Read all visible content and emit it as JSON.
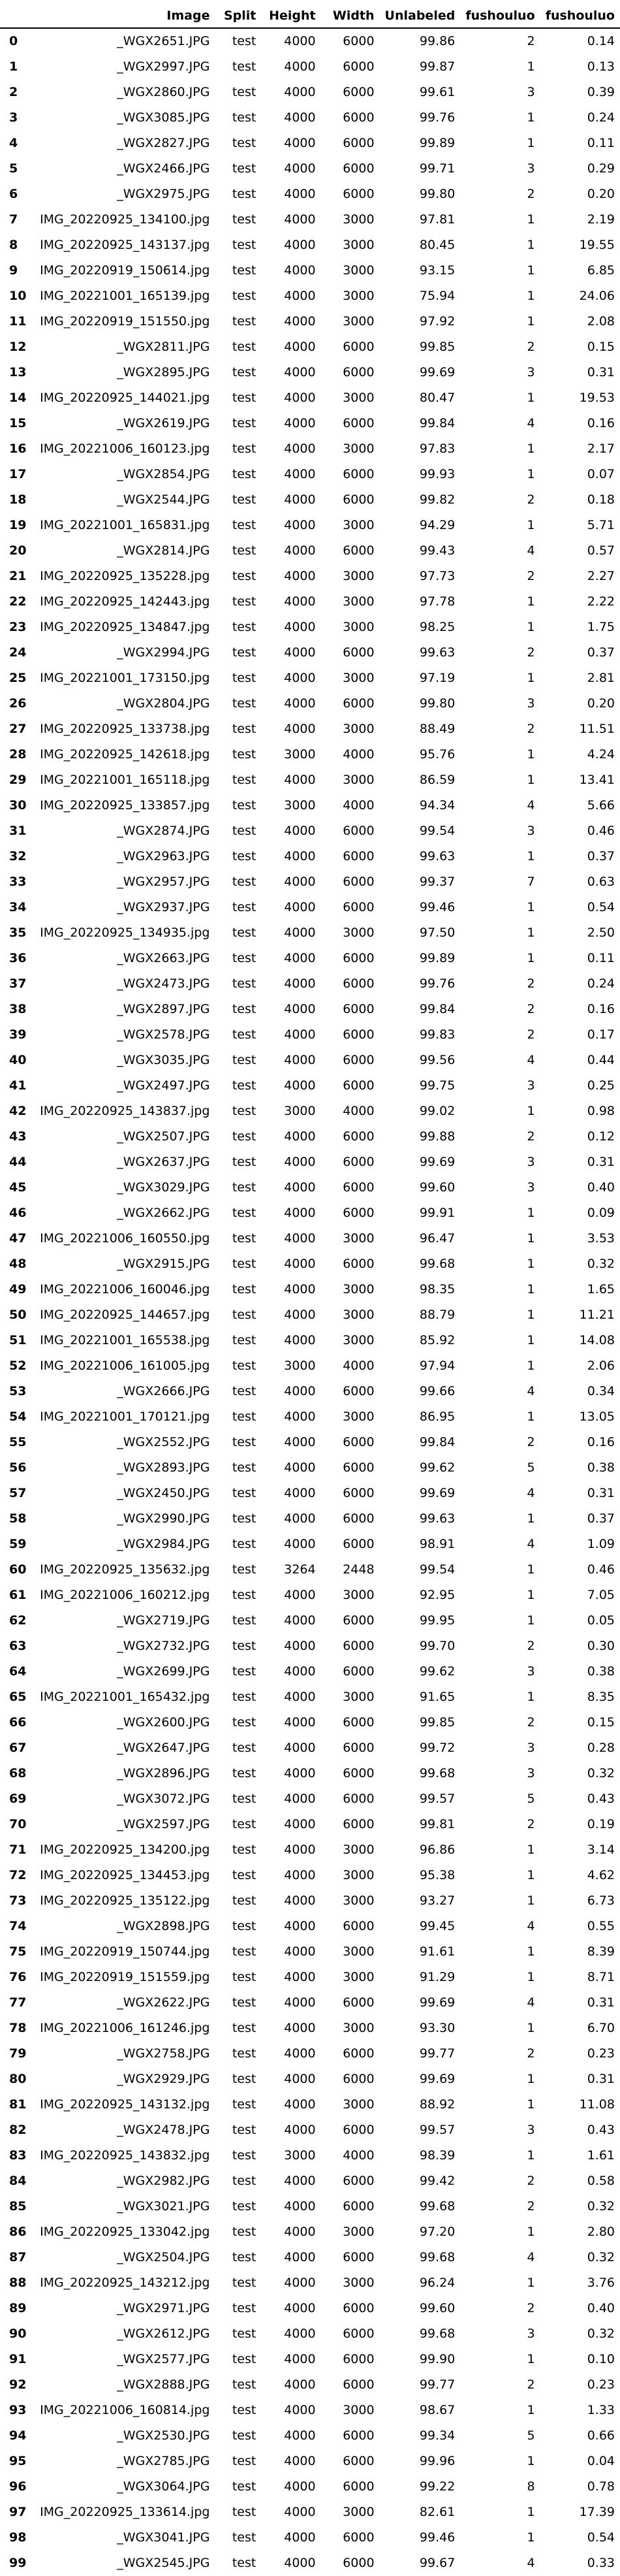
{
  "columns": [
    "",
    "Image",
    "Split",
    "Height",
    "Width",
    "Unlabeled",
    "fushouluo",
    "fushouluo"
  ],
  "rows": [
    [
      "0",
      "_WGX2651.JPG",
      "test",
      "4000",
      "6000",
      "99.86",
      "2",
      "0.14"
    ],
    [
      "1",
      "_WGX2997.JPG",
      "test",
      "4000",
      "6000",
      "99.87",
      "1",
      "0.13"
    ],
    [
      "2",
      "_WGX2860.JPG",
      "test",
      "4000",
      "6000",
      "99.61",
      "3",
      "0.39"
    ],
    [
      "3",
      "_WGX3085.JPG",
      "test",
      "4000",
      "6000",
      "99.76",
      "1",
      "0.24"
    ],
    [
      "4",
      "_WGX2827.JPG",
      "test",
      "4000",
      "6000",
      "99.89",
      "1",
      "0.11"
    ],
    [
      "5",
      "_WGX2466.JPG",
      "test",
      "4000",
      "6000",
      "99.71",
      "3",
      "0.29"
    ],
    [
      "6",
      "_WGX2975.JPG",
      "test",
      "4000",
      "6000",
      "99.80",
      "2",
      "0.20"
    ],
    [
      "7",
      "IMG_20220925_134100.jpg",
      "test",
      "4000",
      "3000",
      "97.81",
      "1",
      "2.19"
    ],
    [
      "8",
      "IMG_20220925_143137.jpg",
      "test",
      "4000",
      "3000",
      "80.45",
      "1",
      "19.55"
    ],
    [
      "9",
      "IMG_20220919_150614.jpg",
      "test",
      "4000",
      "3000",
      "93.15",
      "1",
      "6.85"
    ],
    [
      "10",
      "IMG_20221001_165139.jpg",
      "test",
      "4000",
      "3000",
      "75.94",
      "1",
      "24.06"
    ],
    [
      "11",
      "IMG_20220919_151550.jpg",
      "test",
      "4000",
      "3000",
      "97.92",
      "1",
      "2.08"
    ],
    [
      "12",
      "_WGX2811.JPG",
      "test",
      "4000",
      "6000",
      "99.85",
      "2",
      "0.15"
    ],
    [
      "13",
      "_WGX2895.JPG",
      "test",
      "4000",
      "6000",
      "99.69",
      "3",
      "0.31"
    ],
    [
      "14",
      "IMG_20220925_144021.jpg",
      "test",
      "4000",
      "3000",
      "80.47",
      "1",
      "19.53"
    ],
    [
      "15",
      "_WGX2619.JPG",
      "test",
      "4000",
      "6000",
      "99.84",
      "4",
      "0.16"
    ],
    [
      "16",
      "IMG_20221006_160123.jpg",
      "test",
      "4000",
      "3000",
      "97.83",
      "1",
      "2.17"
    ],
    [
      "17",
      "_WGX2854.JPG",
      "test",
      "4000",
      "6000",
      "99.93",
      "1",
      "0.07"
    ],
    [
      "18",
      "_WGX2544.JPG",
      "test",
      "4000",
      "6000",
      "99.82",
      "2",
      "0.18"
    ],
    [
      "19",
      "IMG_20221001_165831.jpg",
      "test",
      "4000",
      "3000",
      "94.29",
      "1",
      "5.71"
    ],
    [
      "20",
      "_WGX2814.JPG",
      "test",
      "4000",
      "6000",
      "99.43",
      "4",
      "0.57"
    ],
    [
      "21",
      "IMG_20220925_135228.jpg",
      "test",
      "4000",
      "3000",
      "97.73",
      "2",
      "2.27"
    ],
    [
      "22",
      "IMG_20220925_142443.jpg",
      "test",
      "4000",
      "3000",
      "97.78",
      "1",
      "2.22"
    ],
    [
      "23",
      "IMG_20220925_134847.jpg",
      "test",
      "4000",
      "3000",
      "98.25",
      "1",
      "1.75"
    ],
    [
      "24",
      "_WGX2994.JPG",
      "test",
      "4000",
      "6000",
      "99.63",
      "2",
      "0.37"
    ],
    [
      "25",
      "IMG_20221001_173150.jpg",
      "test",
      "4000",
      "3000",
      "97.19",
      "1",
      "2.81"
    ],
    [
      "26",
      "_WGX2804.JPG",
      "test",
      "4000",
      "6000",
      "99.80",
      "3",
      "0.20"
    ],
    [
      "27",
      "IMG_20220925_133738.jpg",
      "test",
      "4000",
      "3000",
      "88.49",
      "2",
      "11.51"
    ],
    [
      "28",
      "IMG_20220925_142618.jpg",
      "test",
      "3000",
      "4000",
      "95.76",
      "1",
      "4.24"
    ],
    [
      "29",
      "IMG_20221001_165118.jpg",
      "test",
      "4000",
      "3000",
      "86.59",
      "1",
      "13.41"
    ],
    [
      "30",
      "IMG_20220925_133857.jpg",
      "test",
      "3000",
      "4000",
      "94.34",
      "4",
      "5.66"
    ],
    [
      "31",
      "_WGX2874.JPG",
      "test",
      "4000",
      "6000",
      "99.54",
      "3",
      "0.46"
    ],
    [
      "32",
      "_WGX2963.JPG",
      "test",
      "4000",
      "6000",
      "99.63",
      "1",
      "0.37"
    ],
    [
      "33",
      "_WGX2957.JPG",
      "test",
      "4000",
      "6000",
      "99.37",
      "7",
      "0.63"
    ],
    [
      "34",
      "_WGX2937.JPG",
      "test",
      "4000",
      "6000",
      "99.46",
      "1",
      "0.54"
    ],
    [
      "35",
      "IMG_20220925_134935.jpg",
      "test",
      "4000",
      "3000",
      "97.50",
      "1",
      "2.50"
    ],
    [
      "36",
      "_WGX2663.JPG",
      "test",
      "4000",
      "6000",
      "99.89",
      "1",
      "0.11"
    ],
    [
      "37",
      "_WGX2473.JPG",
      "test",
      "4000",
      "6000",
      "99.76",
      "2",
      "0.24"
    ],
    [
      "38",
      "_WGX2897.JPG",
      "test",
      "4000",
      "6000",
      "99.84",
      "2",
      "0.16"
    ],
    [
      "39",
      "_WGX2578.JPG",
      "test",
      "4000",
      "6000",
      "99.83",
      "2",
      "0.17"
    ],
    [
      "40",
      "_WGX3035.JPG",
      "test",
      "4000",
      "6000",
      "99.56",
      "4",
      "0.44"
    ],
    [
      "41",
      "_WGX2497.JPG",
      "test",
      "4000",
      "6000",
      "99.75",
      "3",
      "0.25"
    ],
    [
      "42",
      "IMG_20220925_143837.jpg",
      "test",
      "3000",
      "4000",
      "99.02",
      "1",
      "0.98"
    ],
    [
      "43",
      "_WGX2507.JPG",
      "test",
      "4000",
      "6000",
      "99.88",
      "2",
      "0.12"
    ],
    [
      "44",
      "_WGX2637.JPG",
      "test",
      "4000",
      "6000",
      "99.69",
      "3",
      "0.31"
    ],
    [
      "45",
      "_WGX3029.JPG",
      "test",
      "4000",
      "6000",
      "99.60",
      "3",
      "0.40"
    ],
    [
      "46",
      "_WGX2662.JPG",
      "test",
      "4000",
      "6000",
      "99.91",
      "1",
      "0.09"
    ],
    [
      "47",
      "IMG_20221006_160550.jpg",
      "test",
      "4000",
      "3000",
      "96.47",
      "1",
      "3.53"
    ],
    [
      "48",
      "_WGX2915.JPG",
      "test",
      "4000",
      "6000",
      "99.68",
      "1",
      "0.32"
    ],
    [
      "49",
      "IMG_20221006_160046.jpg",
      "test",
      "4000",
      "3000",
      "98.35",
      "1",
      "1.65"
    ],
    [
      "50",
      "IMG_20220925_144657.jpg",
      "test",
      "4000",
      "3000",
      "88.79",
      "1",
      "11.21"
    ],
    [
      "51",
      "IMG_20221001_165538.jpg",
      "test",
      "4000",
      "3000",
      "85.92",
      "1",
      "14.08"
    ],
    [
      "52",
      "IMG_20221006_161005.jpg",
      "test",
      "3000",
      "4000",
      "97.94",
      "1",
      "2.06"
    ],
    [
      "53",
      "_WGX2666.JPG",
      "test",
      "4000",
      "6000",
      "99.66",
      "4",
      "0.34"
    ],
    [
      "54",
      "IMG_20221001_170121.jpg",
      "test",
      "4000",
      "3000",
      "86.95",
      "1",
      "13.05"
    ],
    [
      "55",
      "_WGX2552.JPG",
      "test",
      "4000",
      "6000",
      "99.84",
      "2",
      "0.16"
    ],
    [
      "56",
      "_WGX2893.JPG",
      "test",
      "4000",
      "6000",
      "99.62",
      "5",
      "0.38"
    ],
    [
      "57",
      "_WGX2450.JPG",
      "test",
      "4000",
      "6000",
      "99.69",
      "4",
      "0.31"
    ],
    [
      "58",
      "_WGX2990.JPG",
      "test",
      "4000",
      "6000",
      "99.63",
      "1",
      "0.37"
    ],
    [
      "59",
      "_WGX2984.JPG",
      "test",
      "4000",
      "6000",
      "98.91",
      "4",
      "1.09"
    ],
    [
      "60",
      "IMG_20220925_135632.jpg",
      "test",
      "3264",
      "2448",
      "99.54",
      "1",
      "0.46"
    ],
    [
      "61",
      "IMG_20221006_160212.jpg",
      "test",
      "4000",
      "3000",
      "92.95",
      "1",
      "7.05"
    ],
    [
      "62",
      "_WGX2719.JPG",
      "test",
      "4000",
      "6000",
      "99.95",
      "1",
      "0.05"
    ],
    [
      "63",
      "_WGX2732.JPG",
      "test",
      "4000",
      "6000",
      "99.70",
      "2",
      "0.30"
    ],
    [
      "64",
      "_WGX2699.JPG",
      "test",
      "4000",
      "6000",
      "99.62",
      "3",
      "0.38"
    ],
    [
      "65",
      "IMG_20221001_165432.jpg",
      "test",
      "4000",
      "3000",
      "91.65",
      "1",
      "8.35"
    ],
    [
      "66",
      "_WGX2600.JPG",
      "test",
      "4000",
      "6000",
      "99.85",
      "2",
      "0.15"
    ],
    [
      "67",
      "_WGX2647.JPG",
      "test",
      "4000",
      "6000",
      "99.72",
      "3",
      "0.28"
    ],
    [
      "68",
      "_WGX2896.JPG",
      "test",
      "4000",
      "6000",
      "99.68",
      "3",
      "0.32"
    ],
    [
      "69",
      "_WGX3072.JPG",
      "test",
      "4000",
      "6000",
      "99.57",
      "5",
      "0.43"
    ],
    [
      "70",
      "_WGX2597.JPG",
      "test",
      "4000",
      "6000",
      "99.81",
      "2",
      "0.19"
    ],
    [
      "71",
      "IMG_20220925_134200.jpg",
      "test",
      "4000",
      "3000",
      "96.86",
      "1",
      "3.14"
    ],
    [
      "72",
      "IMG_20220925_134453.jpg",
      "test",
      "4000",
      "3000",
      "95.38",
      "1",
      "4.62"
    ],
    [
      "73",
      "IMG_20220925_135122.jpg",
      "test",
      "4000",
      "3000",
      "93.27",
      "1",
      "6.73"
    ],
    [
      "74",
      "_WGX2898.JPG",
      "test",
      "4000",
      "6000",
      "99.45",
      "4",
      "0.55"
    ],
    [
      "75",
      "IMG_20220919_150744.jpg",
      "test",
      "4000",
      "3000",
      "91.61",
      "1",
      "8.39"
    ],
    [
      "76",
      "IMG_20220919_151559.jpg",
      "test",
      "4000",
      "3000",
      "91.29",
      "1",
      "8.71"
    ],
    [
      "77",
      "_WGX2622.JPG",
      "test",
      "4000",
      "6000",
      "99.69",
      "4",
      "0.31"
    ],
    [
      "78",
      "IMG_20221006_161246.jpg",
      "test",
      "4000",
      "3000",
      "93.30",
      "1",
      "6.70"
    ],
    [
      "79",
      "_WGX2758.JPG",
      "test",
      "4000",
      "6000",
      "99.77",
      "2",
      "0.23"
    ],
    [
      "80",
      "_WGX2929.JPG",
      "test",
      "4000",
      "6000",
      "99.69",
      "1",
      "0.31"
    ],
    [
      "81",
      "IMG_20220925_143132.jpg",
      "test",
      "4000",
      "3000",
      "88.92",
      "1",
      "11.08"
    ],
    [
      "82",
      "_WGX2478.JPG",
      "test",
      "4000",
      "6000",
      "99.57",
      "3",
      "0.43"
    ],
    [
      "83",
      "IMG_20220925_143832.jpg",
      "test",
      "3000",
      "4000",
      "98.39",
      "1",
      "1.61"
    ],
    [
      "84",
      "_WGX2982.JPG",
      "test",
      "4000",
      "6000",
      "99.42",
      "2",
      "0.58"
    ],
    [
      "85",
      "_WGX3021.JPG",
      "test",
      "4000",
      "6000",
      "99.68",
      "2",
      "0.32"
    ],
    [
      "86",
      "IMG_20220925_133042.jpg",
      "test",
      "4000",
      "3000",
      "97.20",
      "1",
      "2.80"
    ],
    [
      "87",
      "_WGX2504.JPG",
      "test",
      "4000",
      "6000",
      "99.68",
      "4",
      "0.32"
    ],
    [
      "88",
      "IMG_20220925_143212.jpg",
      "test",
      "4000",
      "3000",
      "96.24",
      "1",
      "3.76"
    ],
    [
      "89",
      "_WGX2971.JPG",
      "test",
      "4000",
      "6000",
      "99.60",
      "2",
      "0.40"
    ],
    [
      "90",
      "_WGX2612.JPG",
      "test",
      "4000",
      "6000",
      "99.68",
      "3",
      "0.32"
    ],
    [
      "91",
      "_WGX2577.JPG",
      "test",
      "4000",
      "6000",
      "99.90",
      "1",
      "0.10"
    ],
    [
      "92",
      "_WGX2888.JPG",
      "test",
      "4000",
      "6000",
      "99.77",
      "2",
      "0.23"
    ],
    [
      "93",
      "IMG_20221006_160814.jpg",
      "test",
      "4000",
      "3000",
      "98.67",
      "1",
      "1.33"
    ],
    [
      "94",
      "_WGX2530.JPG",
      "test",
      "4000",
      "6000",
      "99.34",
      "5",
      "0.66"
    ],
    [
      "95",
      "_WGX2785.JPG",
      "test",
      "4000",
      "6000",
      "99.96",
      "1",
      "0.04"
    ],
    [
      "96",
      "_WGX3064.JPG",
      "test",
      "4000",
      "6000",
      "99.22",
      "8",
      "0.78"
    ],
    [
      "97",
      "IMG_20220925_133614.jpg",
      "test",
      "4000",
      "3000",
      "82.61",
      "1",
      "17.39"
    ],
    [
      "98",
      "_WGX3041.JPG",
      "test",
      "4000",
      "6000",
      "99.46",
      "1",
      "0.54"
    ],
    [
      "99",
      "_WGX2545.JPG",
      "test",
      "4000",
      "6000",
      "99.67",
      "4",
      "0.33"
    ]
  ]
}
